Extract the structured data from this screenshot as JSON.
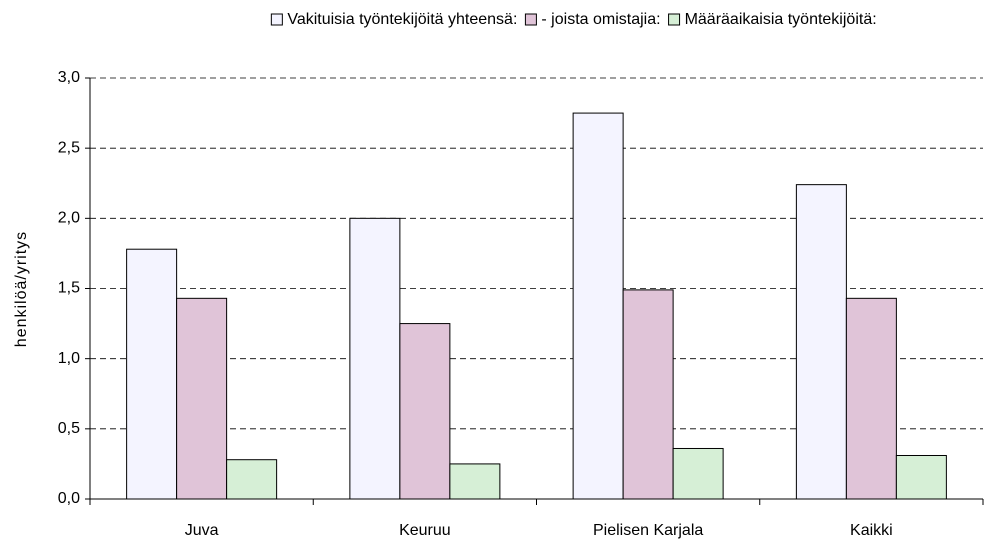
{
  "chart_data": {
    "type": "bar",
    "categories": [
      "Juva",
      "Keuruu",
      "Pielisen Karjala",
      "Kaikki"
    ],
    "series": [
      {
        "name": "Vakituisia työntekijöitä yhteensä:",
        "color": "#f4f4ff",
        "values": [
          1.78,
          2.0,
          2.75,
          2.24
        ]
      },
      {
        "name": "- joista omistajia:",
        "color": "#e0c4d8",
        "values": [
          1.43,
          1.25,
          1.49,
          1.43
        ]
      },
      {
        "name": "Määräaikaisia työntekijöitä:",
        "color": "#d6efd6",
        "values": [
          0.28,
          0.25,
          0.36,
          0.31
        ]
      }
    ],
    "y_label": "henkilöä/yritys",
    "ylim": [
      0,
      3
    ],
    "yticks": [
      {
        "value": 0,
        "label": "0,0"
      },
      {
        "value": 0.5,
        "label": "0,5"
      },
      {
        "value": 1,
        "label": "1,0"
      },
      {
        "value": 1.5,
        "label": "1,5"
      },
      {
        "value": 2,
        "label": "2,0"
      },
      {
        "value": 2.5,
        "label": "2,5"
      },
      {
        "value": 3,
        "label": "3,0"
      }
    ],
    "grid": true,
    "legend": "top"
  }
}
